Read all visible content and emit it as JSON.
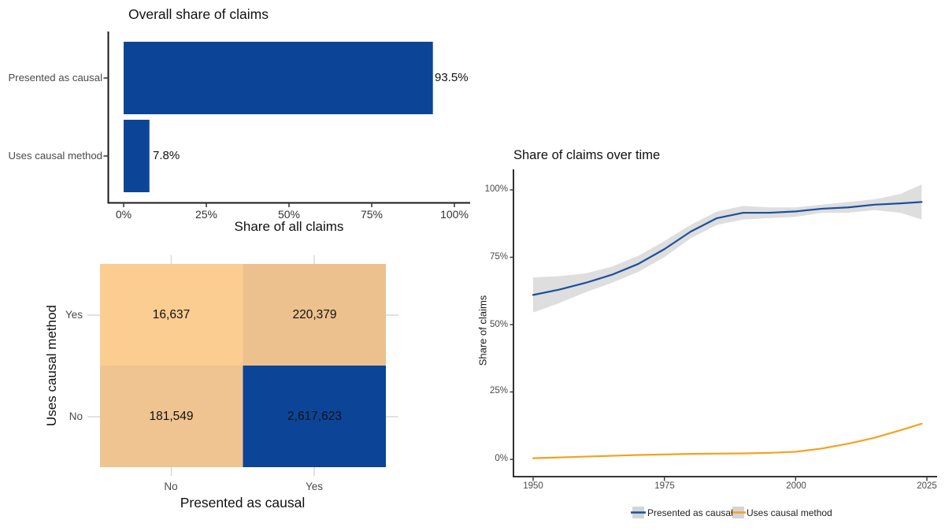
{
  "colors": {
    "bar_blue": "#0c4598",
    "line_blue": "#1c4f9c",
    "line_orange": "#f5a11f",
    "band_gray": "#dcdcdc",
    "legend_key_gray": "#d4d4d4",
    "axis_black": "#1a1a1a",
    "grid_gray": "#d9d9d9",
    "tick_text": "#4a4a4a"
  },
  "chart_data": [
    {
      "id": "overall-share",
      "type": "bar",
      "orientation": "horizontal",
      "title": "Overall share of claims",
      "xlabel": "Share of all claims",
      "categories": [
        "Presented as causal",
        "Uses causal method"
      ],
      "values": [
        93.5,
        7.8
      ],
      "value_labels": [
        "93.5%",
        "7.8%"
      ],
      "x_ticks": [
        "0%",
        "25%",
        "50%",
        "75%",
        "100%"
      ],
      "x_tick_values": [
        0,
        25,
        50,
        75,
        100
      ],
      "xlim": [
        0,
        100
      ],
      "grid": false,
      "legend_position": "none"
    },
    {
      "id": "confusion-matrix",
      "type": "heatmap",
      "xlabel": "Presented as causal",
      "ylabel": "Uses causal method",
      "x_categories": [
        "No",
        "Yes"
      ],
      "y_categories": [
        "Yes",
        "No"
      ],
      "rows": [
        {
          "y": "Yes",
          "cells": [
            {
              "x": "No",
              "value": "16,637",
              "color": "#fbcd91"
            },
            {
              "x": "Yes",
              "value": "220,379",
              "color": "#ecc18d"
            }
          ]
        },
        {
          "y": "No",
          "cells": [
            {
              "x": "No",
              "value": "181,549",
              "color": "#efc490"
            },
            {
              "x": "Yes",
              "value": "2,617,623",
              "color": "#0c4598"
            }
          ]
        }
      ]
    },
    {
      "id": "share-over-time",
      "type": "line",
      "title": "Share of claims over time",
      "ylabel": "Share of claims",
      "x_ticks": [
        "1950",
        "1975",
        "2000",
        "2025"
      ],
      "x_tick_values": [
        1950,
        1975,
        2000,
        2025
      ],
      "y_ticks": [
        "0%",
        "25%",
        "50%",
        "75%",
        "100%"
      ],
      "y_tick_values": [
        0,
        25,
        50,
        75,
        100
      ],
      "xlim": [
        1950,
        2025
      ],
      "ylim": [
        0,
        100
      ],
      "grid": false,
      "legend_position": "bottom",
      "series": [
        {
          "name": "Presented as causal",
          "color": "#1c4f9c",
          "band_color": "#dcdcdc",
          "x": [
            1950,
            1955,
            1960,
            1965,
            1970,
            1975,
            1980,
            1985,
            1990,
            1995,
            2000,
            2005,
            2010,
            2015,
            2020,
            2024
          ],
          "y": [
            61,
            63,
            65.5,
            68.5,
            72.5,
            78,
            84.5,
            89.5,
            91.5,
            91.5,
            92,
            93,
            93.5,
            94.5,
            95,
            95.5
          ],
          "band_upper": [
            67.5,
            68,
            69,
            71.5,
            75.5,
            81,
            87,
            92,
            94,
            93.5,
            93.5,
            94.5,
            95.5,
            96.5,
            98.5,
            102
          ],
          "band_lower": [
            54.5,
            58,
            62,
            65.5,
            69.5,
            75,
            82,
            87,
            89,
            89.5,
            90,
            91.5,
            91.5,
            92.5,
            91.5,
            89
          ]
        },
        {
          "name": "Uses causal method",
          "color": "#f5a11f",
          "x": [
            1950,
            1955,
            1960,
            1965,
            1970,
            1975,
            1980,
            1985,
            1990,
            1995,
            2000,
            2005,
            2010,
            2015,
            2020,
            2024
          ],
          "y": [
            0.4,
            0.7,
            1,
            1.3,
            1.6,
            1.8,
            2,
            2.1,
            2.2,
            2.4,
            2.8,
            4,
            5.8,
            8,
            10.8,
            13.2
          ]
        }
      ]
    }
  ]
}
